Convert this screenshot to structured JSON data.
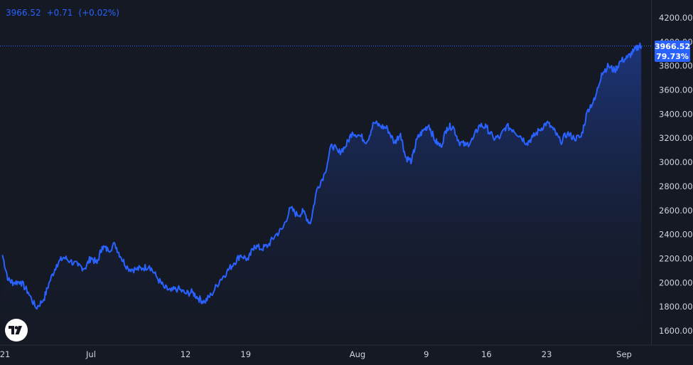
{
  "legend": {
    "price": "3966.52",
    "change": "+0.71",
    "change_pct": "(+0.02%)"
  },
  "price_tag": {
    "price": "3966.52",
    "pct": "79.73%"
  },
  "colors": {
    "background": "#151924",
    "line": "#2962ff",
    "area_top": "#1e3a8a",
    "grid_border": "#2a2e39",
    "axis_text": "#d1d4dc",
    "price_line": "#2962ff"
  },
  "chart_data": {
    "type": "area",
    "title": "",
    "xlabel": "",
    "ylabel": "",
    "ylim": [
      1500,
      4300
    ],
    "grid": false,
    "last_value": 3966.52,
    "y_ticks": [
      "1600.00",
      "1800.00",
      "2000.00",
      "2200.00",
      "2400.00",
      "2600.00",
      "2800.00",
      "3000.00",
      "3200.00",
      "3400.00",
      "3600.00",
      "3800.00",
      "4000.00",
      "4200.00"
    ],
    "x_ticks": [
      {
        "label": "21",
        "day": 0
      },
      {
        "label": "Jul",
        "day": 10
      },
      {
        "label": "12",
        "day": 21
      },
      {
        "label": "19",
        "day": 28
      },
      {
        "label": "Aug",
        "day": 41
      },
      {
        "label": "9",
        "day": 49
      },
      {
        "label": "16",
        "day": 56
      },
      {
        "label": "23",
        "day": 63
      },
      {
        "label": "Sep",
        "day": 72
      }
    ],
    "x_range_days": [
      -0.3,
      74.0
    ],
    "series": [
      {
        "x": [
          -0.3,
          0.4,
          1.0,
          1.8,
          2.7,
          3.6,
          4.5,
          5.2,
          6.0,
          6.8,
          7.6,
          8.5,
          9.3,
          10.0,
          10.7,
          11.3,
          12.0,
          12.8,
          13.5,
          14.3,
          15.2,
          16.0,
          16.8,
          17.7,
          18.5,
          19.3,
          20.1,
          21.0,
          21.8,
          22.5,
          23.2,
          24.0,
          25.0,
          25.8,
          26.6,
          27.4,
          28.3,
          29.0,
          29.8,
          30.6,
          31.4,
          32.3,
          33.2,
          34.0,
          34.7,
          35.5,
          36.3,
          37.2,
          38.0,
          38.8,
          39.6,
          40.4,
          41.3,
          42.1,
          42.9,
          43.7,
          44.5,
          45.3,
          46.0,
          46.6,
          47.3,
          47.9,
          48.6,
          49.3,
          50.0,
          50.7,
          51.4,
          52.1,
          52.8,
          53.6,
          54.4,
          55.2,
          56.0,
          56.8,
          57.6,
          58.3,
          59.1,
          59.9,
          60.7,
          61.4,
          62.2,
          63.0,
          63.8,
          64.6,
          65.4,
          66.2,
          67.0,
          67.8,
          68.6,
          69.4,
          70.2,
          70.9,
          71.6,
          72.4,
          73.1,
          73.7,
          74.0
        ],
        "y": [
          2230,
          2020,
          2000,
          2010,
          1920,
          1790,
          1860,
          2010,
          2150,
          2210,
          2180,
          2140,
          2120,
          2210,
          2160,
          2300,
          2270,
          2320,
          2210,
          2120,
          2110,
          2120,
          2140,
          2040,
          1960,
          1930,
          1950,
          1910,
          1920,
          1870,
          1840,
          1900,
          2020,
          2090,
          2160,
          2230,
          2190,
          2310,
          2280,
          2310,
          2390,
          2450,
          2620,
          2560,
          2590,
          2490,
          2780,
          2910,
          3150,
          3080,
          3130,
          3250,
          3220,
          3170,
          3330,
          3300,
          3280,
          3160,
          3240,
          3040,
          3010,
          3190,
          3260,
          3310,
          3180,
          3130,
          3290,
          3300,
          3170,
          3140,
          3190,
          3310,
          3290,
          3200,
          3210,
          3300,
          3270,
          3220,
          3160,
          3210,
          3270,
          3330,
          3270,
          3170,
          3240,
          3200,
          3210,
          3440,
          3520,
          3740,
          3800,
          3760,
          3840,
          3870,
          3920,
          3966.52,
          3966.52
        ],
        "color": "#2962ff"
      }
    ]
  }
}
